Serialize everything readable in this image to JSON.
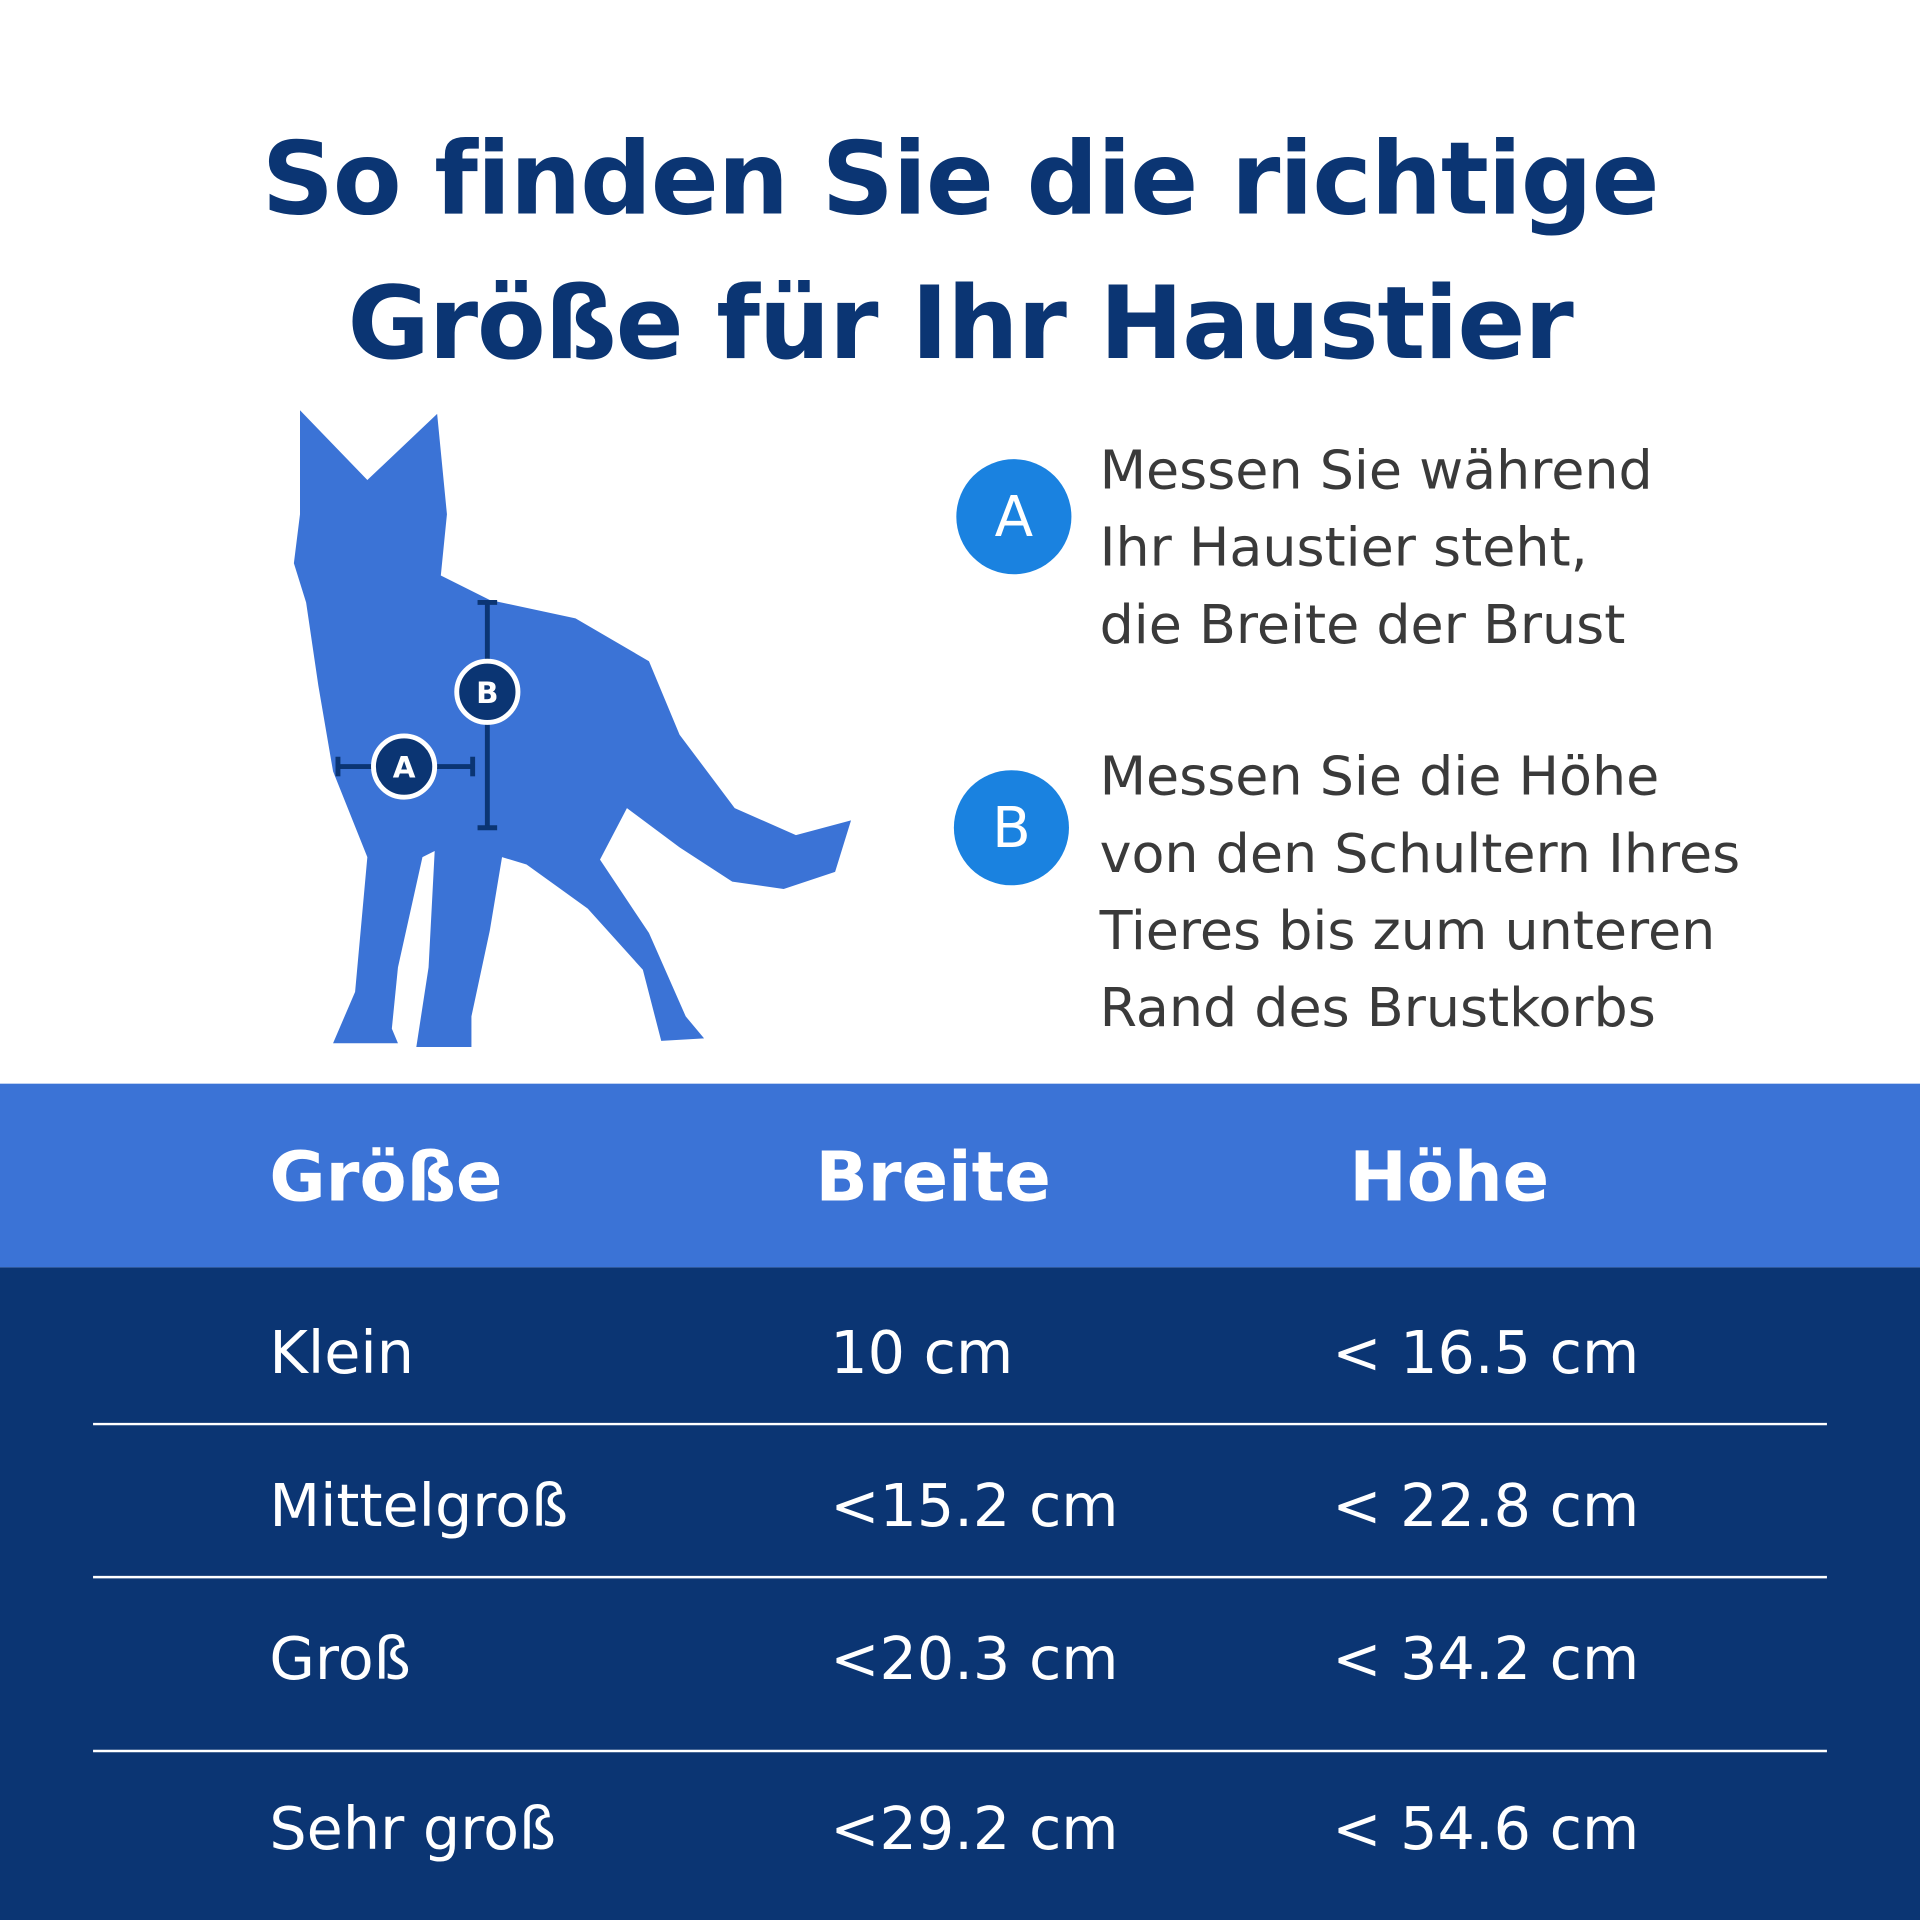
{
  "header": {
    "title": [
      "So finden Sie die richtige",
      "Größe für Ihr Haustier"
    ]
  },
  "diagram": {
    "markers": [
      "B",
      "A"
    ]
  },
  "instructions": [
    {
      "badge": "A",
      "lines": [
        "Messen Sie während",
        "Ihr Haustier steht,",
        "die Breite der Brust"
      ]
    },
    {
      "badge": "B",
      "lines": [
        "Messen Sie die Höhe",
        "von den Schultern Ihres",
        "Tieres bis zum unteren",
        "Rand des Brustkorbs"
      ]
    }
  ],
  "table": {
    "headers": [
      "Größe",
      "Breite",
      "Höhe"
    ],
    "rows": [
      [
        "Klein",
        "10 cm",
        "< 16.5 cm"
      ],
      [
        "Mittelgroß",
        "<15.2 cm",
        "< 22.8 cm"
      ],
      [
        "Groß",
        "<20.3 cm",
        "< 34.2 cm"
      ],
      [
        "Sehr groß",
        "<29.2 cm",
        "< 54.6 cm"
      ]
    ]
  }
}
